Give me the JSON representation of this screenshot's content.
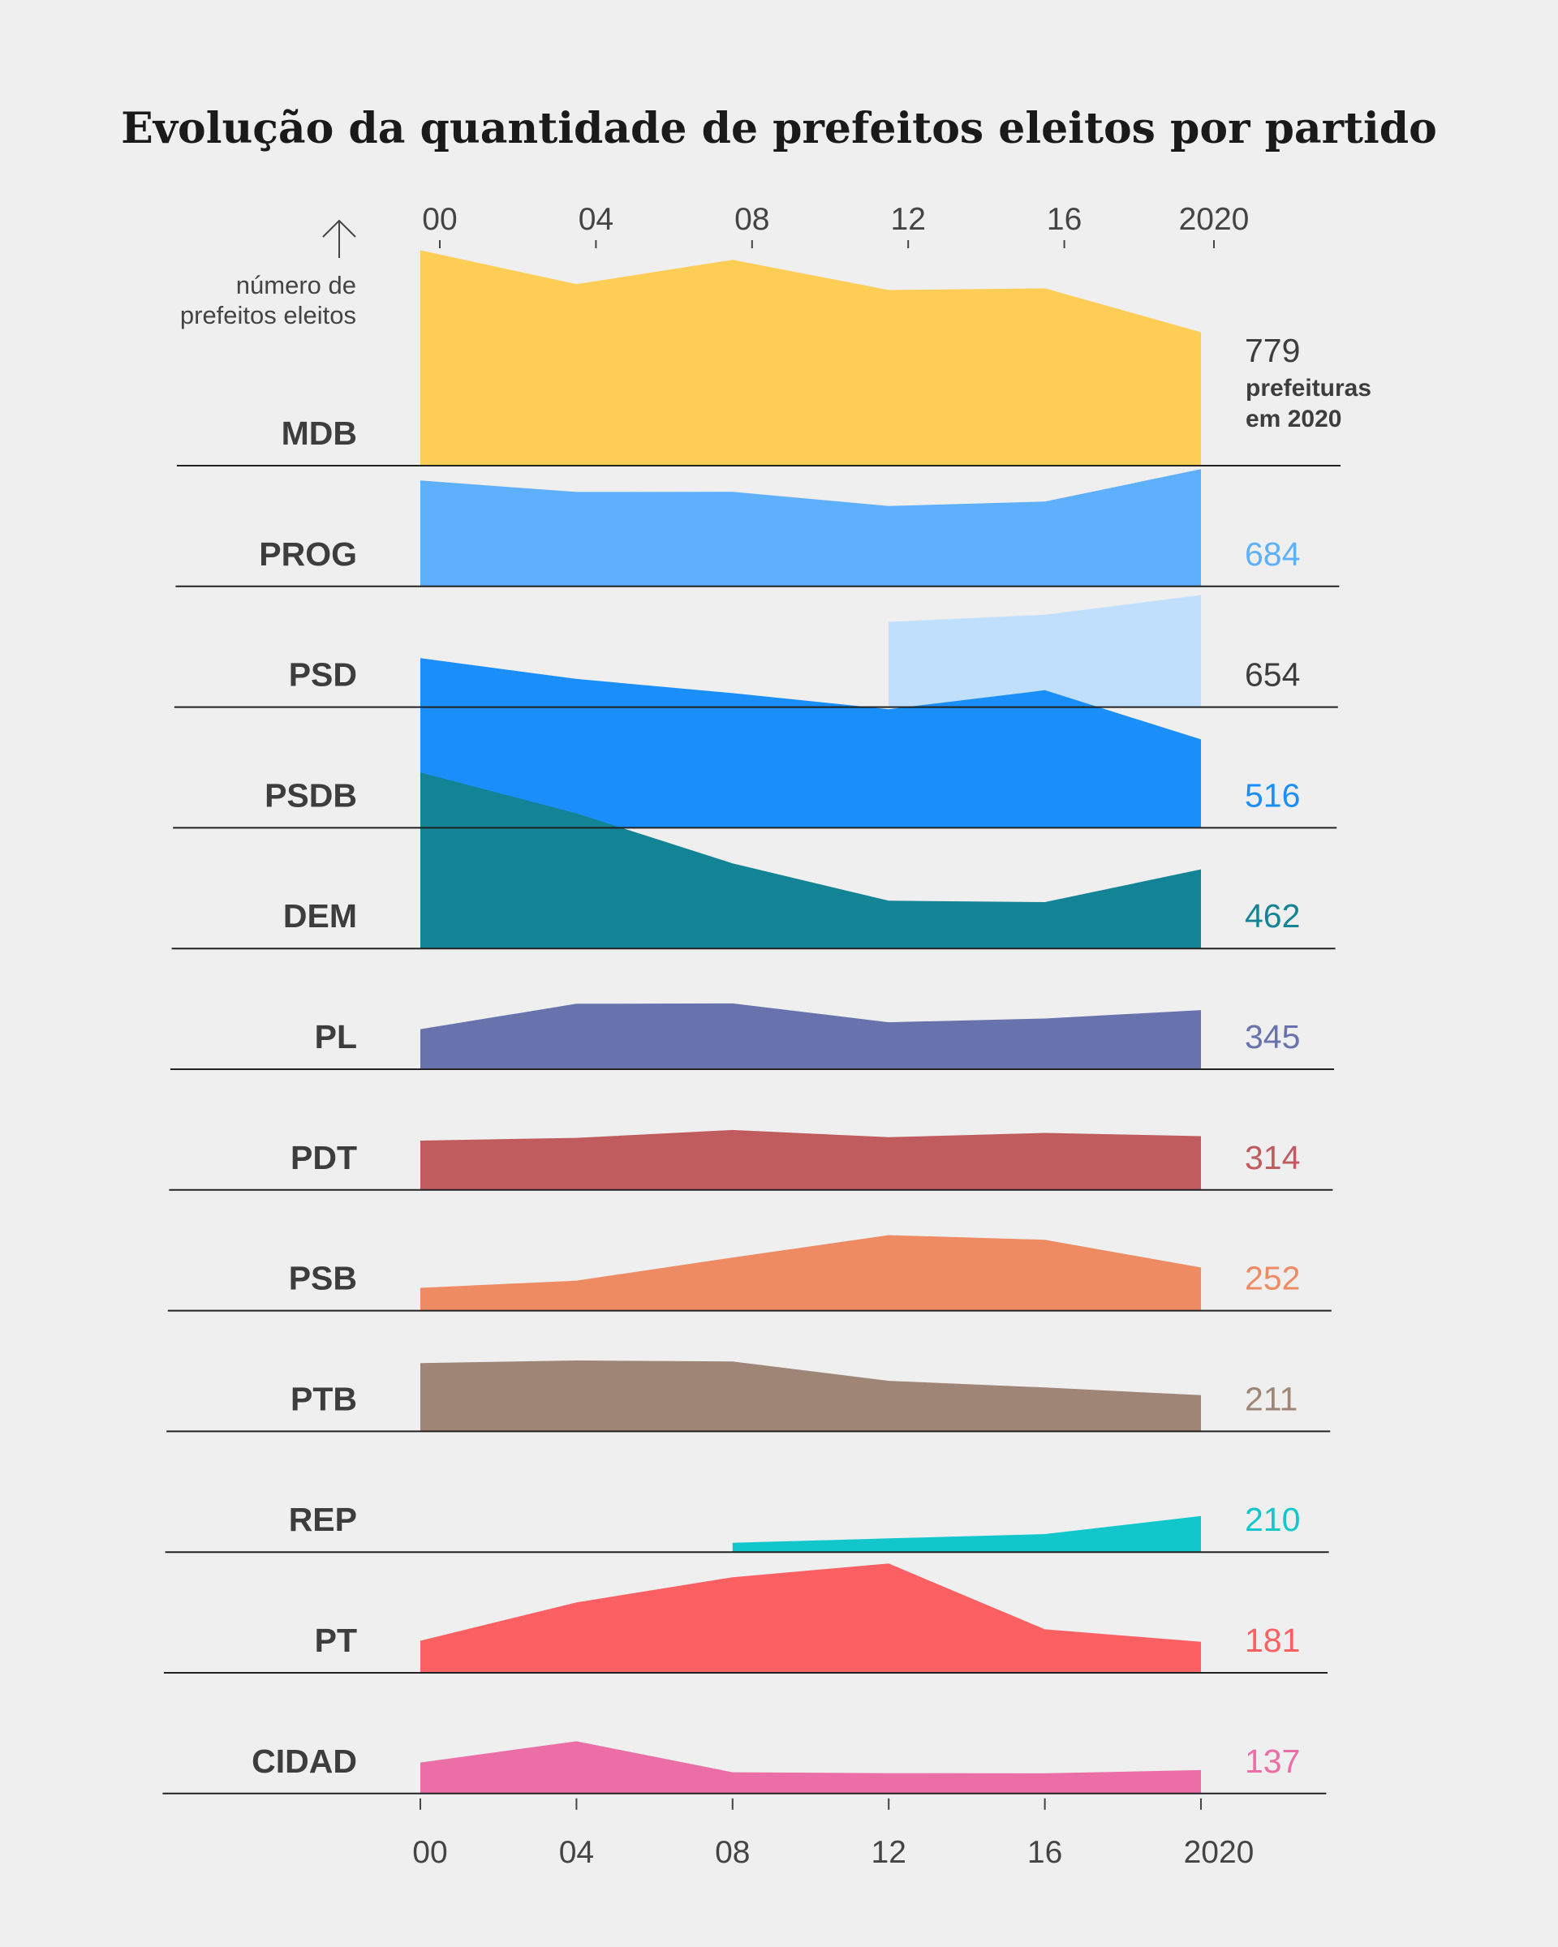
{
  "title": "Evolução da quantidade  de prefeitos eleitos por partido",
  "chart_data": {
    "type": "area",
    "title": "Evolução da quantidade  de prefeitos eleitos por partido",
    "ylabel": "número de prefeitos eleitos",
    "x": [
      2000,
      2004,
      2008,
      2012,
      2016,
      2020
    ],
    "top_axis_ticks": [
      "00",
      "04",
      "08",
      "12",
      "16",
      "2020"
    ],
    "bottom_axis_ticks": [
      "00",
      "04",
      "08",
      "12",
      "16",
      "2020"
    ],
    "final_value_note": "prefeituras em 2020",
    "series": [
      {
        "name": "MDB",
        "color": "#fdcd55",
        "final_label": "779",
        "final_label_color": "#3d3d3d",
        "values": [
          1257,
          1059,
          1201,
          1025,
          1035,
          779
        ]
      },
      {
        "name": "PROG",
        "color": "#5eb0fc",
        "final_label": "684",
        "final_label_color": "#5eb0fc",
        "values": [
          618,
          551,
          552,
          469,
          495,
          684
        ]
      },
      {
        "name": "PSD",
        "color": "#bfdffd",
        "final_label": "654",
        "final_label_color": "#3d3d3d",
        "values": [
          null,
          null,
          null,
          497,
          539,
          654
        ]
      },
      {
        "name": "PSDB",
        "color": "#1a8ffb",
        "final_label": "516",
        "final_label_color": "#1a8ffb",
        "values": [
          990,
          869,
          786,
          692,
          803,
          516
        ]
      },
      {
        "name": "DEM",
        "color": "#138396",
        "final_label": "462",
        "final_label_color": "#138396",
        "values": [
          1027,
          789,
          497,
          279,
          271,
          462
        ]
      },
      {
        "name": "PL",
        "color": "#6873ae",
        "final_label": "345",
        "final_label_color": "#6873ae",
        "values": [
          234,
          382,
          384,
          274,
          296,
          345
        ]
      },
      {
        "name": "PDT",
        "color": "#c05b5e",
        "final_label": "314",
        "final_label_color": "#c05b5e",
        "values": [
          288,
          304,
          350,
          308,
          333,
          314
        ]
      },
      {
        "name": "PSB",
        "color": "#ef8b63",
        "final_label": "252",
        "final_label_color": "#ef8b63",
        "values": [
          133,
          175,
          310,
          441,
          414,
          252
        ]
      },
      {
        "name": "PTB",
        "color": "#9e8576",
        "final_label": "211",
        "final_label_color": "#9e8576",
        "values": [
          398,
          414,
          408,
          295,
          256,
          211
        ]
      },
      {
        "name": "REP",
        "color": "#11c7cc",
        "final_label": "210",
        "final_label_color": "#11c7cc",
        "values": [
          null,
          null,
          54,
          80,
          105,
          210
        ]
      },
      {
        "name": "PT",
        "color": "#fd6063",
        "final_label": "181",
        "final_label_color": "#fd6063",
        "values": [
          187,
          411,
          558,
          638,
          254,
          181
        ]
      },
      {
        "name": "CIDAD",
        "color": "#ec6ea6",
        "final_label": "137",
        "final_label_color": "#ec6ea6",
        "values": [
          181,
          305,
          124,
          119,
          118,
          137
        ]
      }
    ]
  }
}
